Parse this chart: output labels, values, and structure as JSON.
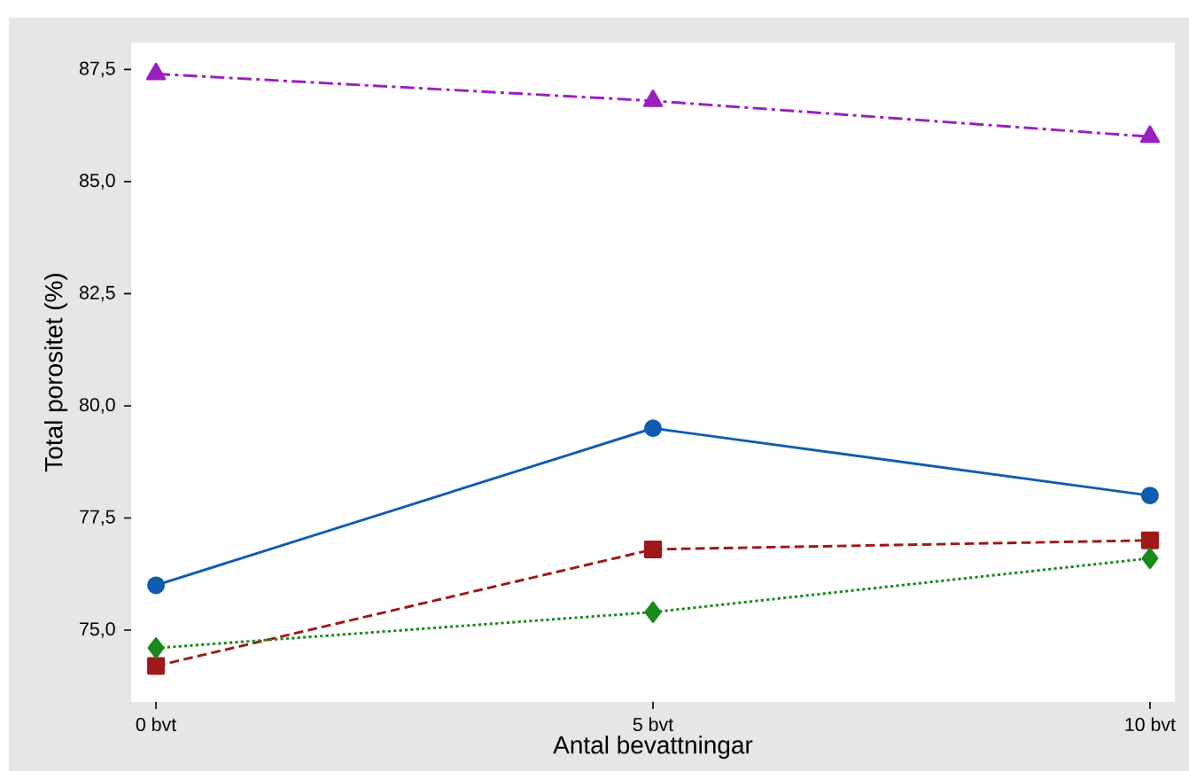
{
  "chart_data": {
    "type": "line",
    "xlabel": "Antal bevattningar",
    "ylabel": "Total porositet (%)",
    "categories": [
      "0 bvt",
      "5 bvt",
      "10 bvt"
    ],
    "ylim": [
      73.4,
      88.1
    ],
    "yticks": [
      {
        "value": 75,
        "label": "75,0"
      },
      {
        "value": 77.5,
        "label": "77,5"
      },
      {
        "value": 80,
        "label": "80,0"
      },
      {
        "value": 82.5,
        "label": "82,5"
      },
      {
        "value": 85,
        "label": "85,0"
      },
      {
        "value": 87.5,
        "label": "87,5"
      }
    ],
    "series": [
      {
        "color": "#9a1fbf",
        "marker": "triangle",
        "line_style": "dashdot",
        "values": [
          87.4,
          86.8,
          86.0
        ]
      },
      {
        "color": "#0f5cb0",
        "marker": "circle",
        "line_style": "solid",
        "values": [
          76.0,
          79.5,
          78.0
        ]
      },
      {
        "color": "#a01818",
        "marker": "square",
        "line_style": "dashed",
        "values": [
          74.2,
          76.8,
          77.0
        ]
      },
      {
        "color": "#1a8a1a",
        "marker": "diamond",
        "line_style": "dotted",
        "values": [
          74.6,
          75.4,
          76.6
        ]
      }
    ]
  }
}
